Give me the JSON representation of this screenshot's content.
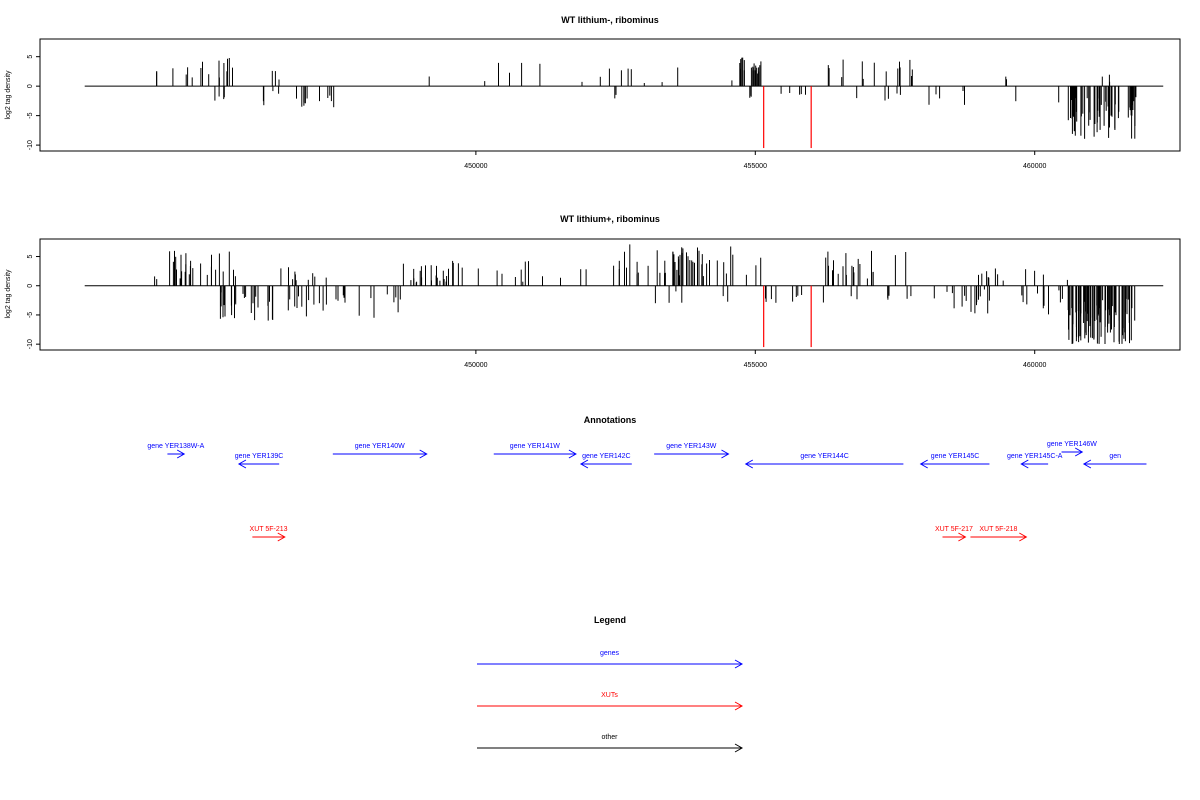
{
  "chart_data": [
    {
      "type": "bar",
      "title": "WT lithium-, ribominus",
      "xlabel": "",
      "ylabel": "log2 tag density",
      "xlim": [
        442200,
        462600
      ],
      "ylim": [
        -11,
        8
      ],
      "yticks": [
        5,
        0,
        -5,
        -10
      ],
      "xticks": [
        450000,
        455000,
        460000
      ],
      "x_tick_labels": [
        "450000",
        "455000",
        "460000"
      ],
      "baseline": {
        "from": 443000,
        "to": 462300,
        "value": 0
      },
      "color": "#000000",
      "highlight_color": "#ff0000",
      "highlights": [
        {
          "x": 455150,
          "value": -10.5
        },
        {
          "x": 456000,
          "value": -10.5
        }
      ],
      "regions": [
        {
          "x_start": 444250,
          "x_end": 444300,
          "sign": 1,
          "min": 2,
          "max": 3.3,
          "density": 2
        },
        {
          "x_start": 444500,
          "x_end": 445800,
          "sign": 1,
          "min": 1,
          "max": 5,
          "density": 14
        },
        {
          "x_start": 445300,
          "x_end": 445600,
          "sign": -1,
          "min": 1,
          "max": 3,
          "density": 4
        },
        {
          "x_start": 446100,
          "x_end": 446900,
          "sign": -1,
          "min": 0.5,
          "max": 3.5,
          "density": 6
        },
        {
          "x_start": 446300,
          "x_end": 446700,
          "sign": 1,
          "min": 0.8,
          "max": 2.6,
          "density": 3
        },
        {
          "x_start": 446900,
          "x_end": 447700,
          "sign": -1,
          "min": 1,
          "max": 3.8,
          "density": 10
        },
        {
          "x_start": 448700,
          "x_end": 454600,
          "sign": 1,
          "min": 0.5,
          "max": 4,
          "density": 16
        },
        {
          "x_start": 452300,
          "x_end": 452700,
          "sign": -1,
          "min": 0.8,
          "max": 2.8,
          "density": 2
        },
        {
          "x_start": 454700,
          "x_end": 455100,
          "sign": 1,
          "min": 1.5,
          "max": 5,
          "density": 20
        },
        {
          "x_start": 454700,
          "x_end": 455000,
          "sign": -1,
          "min": 0.8,
          "max": 2.5,
          "density": 3
        },
        {
          "x_start": 455150,
          "x_end": 455900,
          "sign": -1,
          "min": 0.4,
          "max": 1.5,
          "density": 5
        },
        {
          "x_start": 456300,
          "x_end": 457900,
          "sign": 1,
          "min": 0.8,
          "max": 5,
          "density": 14
        },
        {
          "x_start": 456500,
          "x_end": 457900,
          "sign": -1,
          "min": 0.6,
          "max": 2.8,
          "density": 5
        },
        {
          "x_start": 457900,
          "x_end": 460600,
          "sign": -1,
          "min": 0.5,
          "max": 3.6,
          "density": 7
        },
        {
          "x_start": 459400,
          "x_end": 459500,
          "sign": 1,
          "min": 1,
          "max": 1.8,
          "density": 2
        },
        {
          "x_start": 460600,
          "x_end": 462000,
          "sign": -1,
          "min": 2,
          "max": 9,
          "density": 60
        },
        {
          "x_start": 461200,
          "x_end": 461350,
          "sign": 1,
          "min": 0.5,
          "max": 2,
          "density": 3
        },
        {
          "x_start": 461800,
          "x_end": 462050,
          "sign": -1,
          "min": 0.5,
          "max": 2,
          "density": 3
        },
        {
          "x_start": 462300,
          "x_end": 463600,
          "sign": 1,
          "min": 1.5,
          "max": 5.3,
          "density": 25
        },
        {
          "x_start": 462450,
          "x_end": 462550,
          "sign": -1,
          "min": 1,
          "max": 2.2,
          "density": 2
        }
      ]
    },
    {
      "type": "bar",
      "title": "WT lithium+, ribominus",
      "xlabel": "",
      "ylabel": "log2 tag density",
      "xlim": [
        442200,
        462600
      ],
      "ylim": [
        -11,
        8
      ],
      "yticks": [
        5,
        0,
        -5,
        -10
      ],
      "xticks": [
        450000,
        455000,
        460000
      ],
      "x_tick_labels": [
        "450000",
        "455000",
        "460000"
      ],
      "baseline": {
        "from": 443000,
        "to": 462300,
        "value": 0
      },
      "color": "#000000",
      "highlight_color": "#ff0000",
      "highlights": [
        {
          "x": 455150,
          "value": -10.5
        },
        {
          "x": 456000,
          "value": -10.5
        }
      ],
      "regions": [
        {
          "x_start": 444250,
          "x_end": 444300,
          "sign": 1,
          "min": 1,
          "max": 1.8,
          "density": 2
        },
        {
          "x_start": 444500,
          "x_end": 445800,
          "sign": 1,
          "min": 1,
          "max": 6,
          "density": 25
        },
        {
          "x_start": 445100,
          "x_end": 446500,
          "sign": -1,
          "min": 1,
          "max": 6,
          "density": 25
        },
        {
          "x_start": 446500,
          "x_end": 447500,
          "sign": 1,
          "min": 0.5,
          "max": 3.5,
          "density": 10
        },
        {
          "x_start": 446500,
          "x_end": 448700,
          "sign": -1,
          "min": 1,
          "max": 5.5,
          "density": 25
        },
        {
          "x_start": 448700,
          "x_end": 450000,
          "sign": 1,
          "min": 0.5,
          "max": 4.5,
          "density": 25
        },
        {
          "x_start": 450000,
          "x_end": 452600,
          "sign": 1,
          "min": 0.5,
          "max": 4.5,
          "density": 15
        },
        {
          "x_start": 452600,
          "x_end": 455100,
          "sign": 1,
          "min": 1.5,
          "max": 7.2,
          "density": 45
        },
        {
          "x_start": 452500,
          "x_end": 455100,
          "sign": -1,
          "min": 0.5,
          "max": 3,
          "density": 6
        },
        {
          "x_start": 455150,
          "x_end": 455900,
          "sign": -1,
          "min": 0.5,
          "max": 3,
          "density": 8
        },
        {
          "x_start": 456200,
          "x_end": 457900,
          "sign": 1,
          "min": 0.8,
          "max": 6,
          "density": 20
        },
        {
          "x_start": 456200,
          "x_end": 458500,
          "sign": -1,
          "min": 0.5,
          "max": 3.5,
          "density": 10
        },
        {
          "x_start": 458500,
          "x_end": 460600,
          "sign": 1,
          "min": 0.5,
          "max": 3.2,
          "density": 12
        },
        {
          "x_start": 458500,
          "x_end": 460600,
          "sign": -1,
          "min": 0.5,
          "max": 5,
          "density": 25
        },
        {
          "x_start": 460600,
          "x_end": 461900,
          "sign": -1,
          "min": 2,
          "max": 10,
          "density": 90
        },
        {
          "x_start": 461900,
          "x_end": 462200,
          "sign": -1,
          "min": 0.5,
          "max": 2.5,
          "density": 3
        },
        {
          "x_start": 462000,
          "x_end": 462150,
          "sign": 1,
          "min": 0.5,
          "max": 1.5,
          "density": 2
        },
        {
          "x_start": 462200,
          "x_end": 463650,
          "sign": 1,
          "min": 1,
          "max": 6,
          "density": 30
        },
        {
          "x_start": 462300,
          "x_end": 463650,
          "sign": -1,
          "min": 0.5,
          "max": 3,
          "density": 8
        }
      ]
    }
  ],
  "annotations": {
    "title": "Annotations",
    "xlim": [
      442200,
      462600
    ],
    "colors": {
      "genes": "#0000ff",
      "xuts": "#ff0000",
      "other": "#000000"
    },
    "genes": [
      {
        "name": "gene YER138W-A",
        "from": 444480,
        "to": 444780,
        "strand": "+"
      },
      {
        "name": "gene YER139C",
        "from": 446480,
        "to": 445760,
        "strand": "-"
      },
      {
        "name": "gene YER140W",
        "from": 447440,
        "to": 449120,
        "strand": "+"
      },
      {
        "name": "gene YER141W",
        "from": 450320,
        "to": 451790,
        "strand": "+"
      },
      {
        "name": "gene YER142C",
        "from": 452790,
        "to": 451880,
        "strand": "-"
      },
      {
        "name": "gene YER143W",
        "from": 453190,
        "to": 454520,
        "strand": "+"
      },
      {
        "name": "gene YER144C",
        "from": 457650,
        "to": 454830,
        "strand": "-"
      },
      {
        "name": "gene YER145C",
        "from": 459190,
        "to": 457960,
        "strand": "-"
      },
      {
        "name": "gene YER145C-A",
        "from": 460240,
        "to": 459760,
        "strand": "-"
      },
      {
        "name": "gene YER146W",
        "from": 460480,
        "to": 460850,
        "strand": "+"
      },
      {
        "name": "gen",
        "from": 462000,
        "to": 460880,
        "strand": "-"
      }
    ],
    "xuts": [
      {
        "name": "XUT 5F-213",
        "from": 446000,
        "to": 446580,
        "strand": "+"
      },
      {
        "name": "XUT 5F-217",
        "from": 458350,
        "to": 458760,
        "strand": "+"
      },
      {
        "name": "XUT 5F-218",
        "from": 458850,
        "to": 459850,
        "strand": "+"
      }
    ]
  },
  "legend": {
    "title": "Legend",
    "items": [
      {
        "label": "genes",
        "color": "#0000ff"
      },
      {
        "label": "XUTs",
        "color": "#ff0000"
      },
      {
        "label": "other",
        "color": "#000000"
      }
    ]
  }
}
